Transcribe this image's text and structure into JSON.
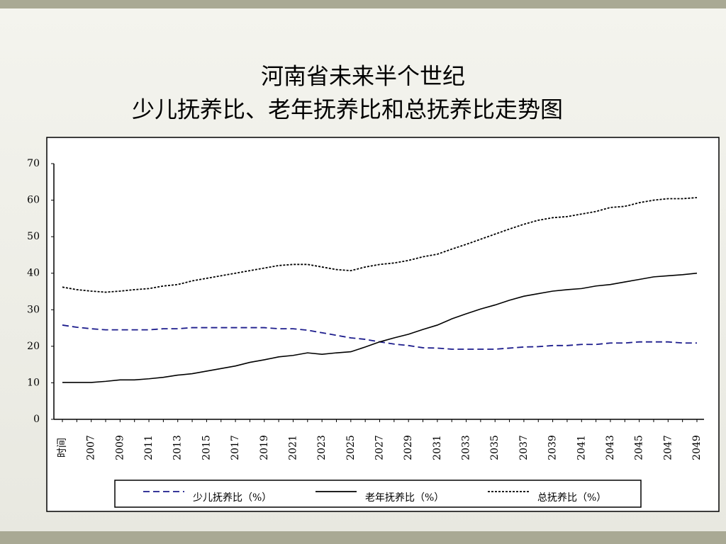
{
  "chart_data": {
    "type": "line",
    "title": "河南省未来半个世纪",
    "subtitle": "少儿抚养比、老年抚养比和总抚养比走势图",
    "categories": [
      "时间",
      null,
      "2007",
      null,
      "2009",
      null,
      "2011",
      null,
      "2013",
      null,
      "2015",
      null,
      "2017",
      null,
      "2019",
      null,
      "2021",
      null,
      "2023",
      null,
      "2025",
      null,
      "2027",
      null,
      "2029",
      null,
      "2031",
      null,
      "2033",
      null,
      "2035",
      null,
      "2037",
      null,
      "2039",
      null,
      "2041",
      null,
      "2043",
      null,
      "2045",
      null,
      "2047",
      null,
      "2049"
    ],
    "series": [
      {
        "name": "少儿抚养比（%）",
        "color": "#1c1c8c",
        "dash": "dashed",
        "values": [
          25.8,
          25.2,
          24.8,
          24.5,
          24.5,
          24.5,
          24.5,
          24.8,
          24.8,
          25.1,
          25.1,
          25.1,
          25.1,
          25.1,
          25.1,
          24.8,
          24.8,
          24.4,
          23.7,
          23.0,
          22.3,
          21.9,
          21.2,
          20.6,
          20.2,
          19.6,
          19.5,
          19.2,
          19.2,
          19.2,
          19.2,
          19.5,
          19.8,
          19.9,
          20.2,
          20.2,
          20.5,
          20.5,
          20.9,
          20.9,
          21.2,
          21.2,
          21.2,
          20.9,
          20.9
        ]
      },
      {
        "name": "老年抚养比（%）",
        "color": "#000000",
        "dash": "solid",
        "values": [
          10.1,
          10.1,
          10.1,
          10.4,
          10.8,
          10.8,
          11.1,
          11.5,
          12.1,
          12.5,
          13.2,
          13.9,
          14.6,
          15.6,
          16.3,
          17.1,
          17.5,
          18.2,
          17.8,
          18.2,
          18.5,
          19.8,
          21.2,
          22.3,
          23.3,
          24.6,
          25.8,
          27.5,
          28.9,
          30.2,
          31.3,
          32.6,
          33.7,
          34.4,
          35.1,
          35.5,
          35.8,
          36.5,
          36.9,
          37.6,
          38.3,
          39.0,
          39.3,
          39.6,
          40.0
        ]
      },
      {
        "name": "总抚养比（%）",
        "color": "#000000",
        "dash": "dotted",
        "values": [
          36.2,
          35.5,
          35.1,
          34.8,
          35.1,
          35.5,
          35.8,
          36.5,
          36.9,
          37.9,
          38.6,
          39.3,
          40.0,
          40.7,
          41.4,
          42.1,
          42.4,
          42.4,
          41.7,
          41.0,
          40.7,
          41.7,
          42.4,
          42.8,
          43.5,
          44.5,
          45.2,
          46.6,
          47.9,
          49.3,
          50.7,
          52.1,
          53.4,
          54.5,
          55.2,
          55.5,
          56.2,
          56.9,
          58.0,
          58.3,
          59.3,
          60.0,
          60.4,
          60.4,
          60.7
        ]
      }
    ],
    "ylim": [
      0,
      70
    ],
    "yticks": [
      0,
      10,
      20,
      30,
      40,
      50,
      60,
      70
    ],
    "grid": false,
    "legend": "bottom"
  }
}
